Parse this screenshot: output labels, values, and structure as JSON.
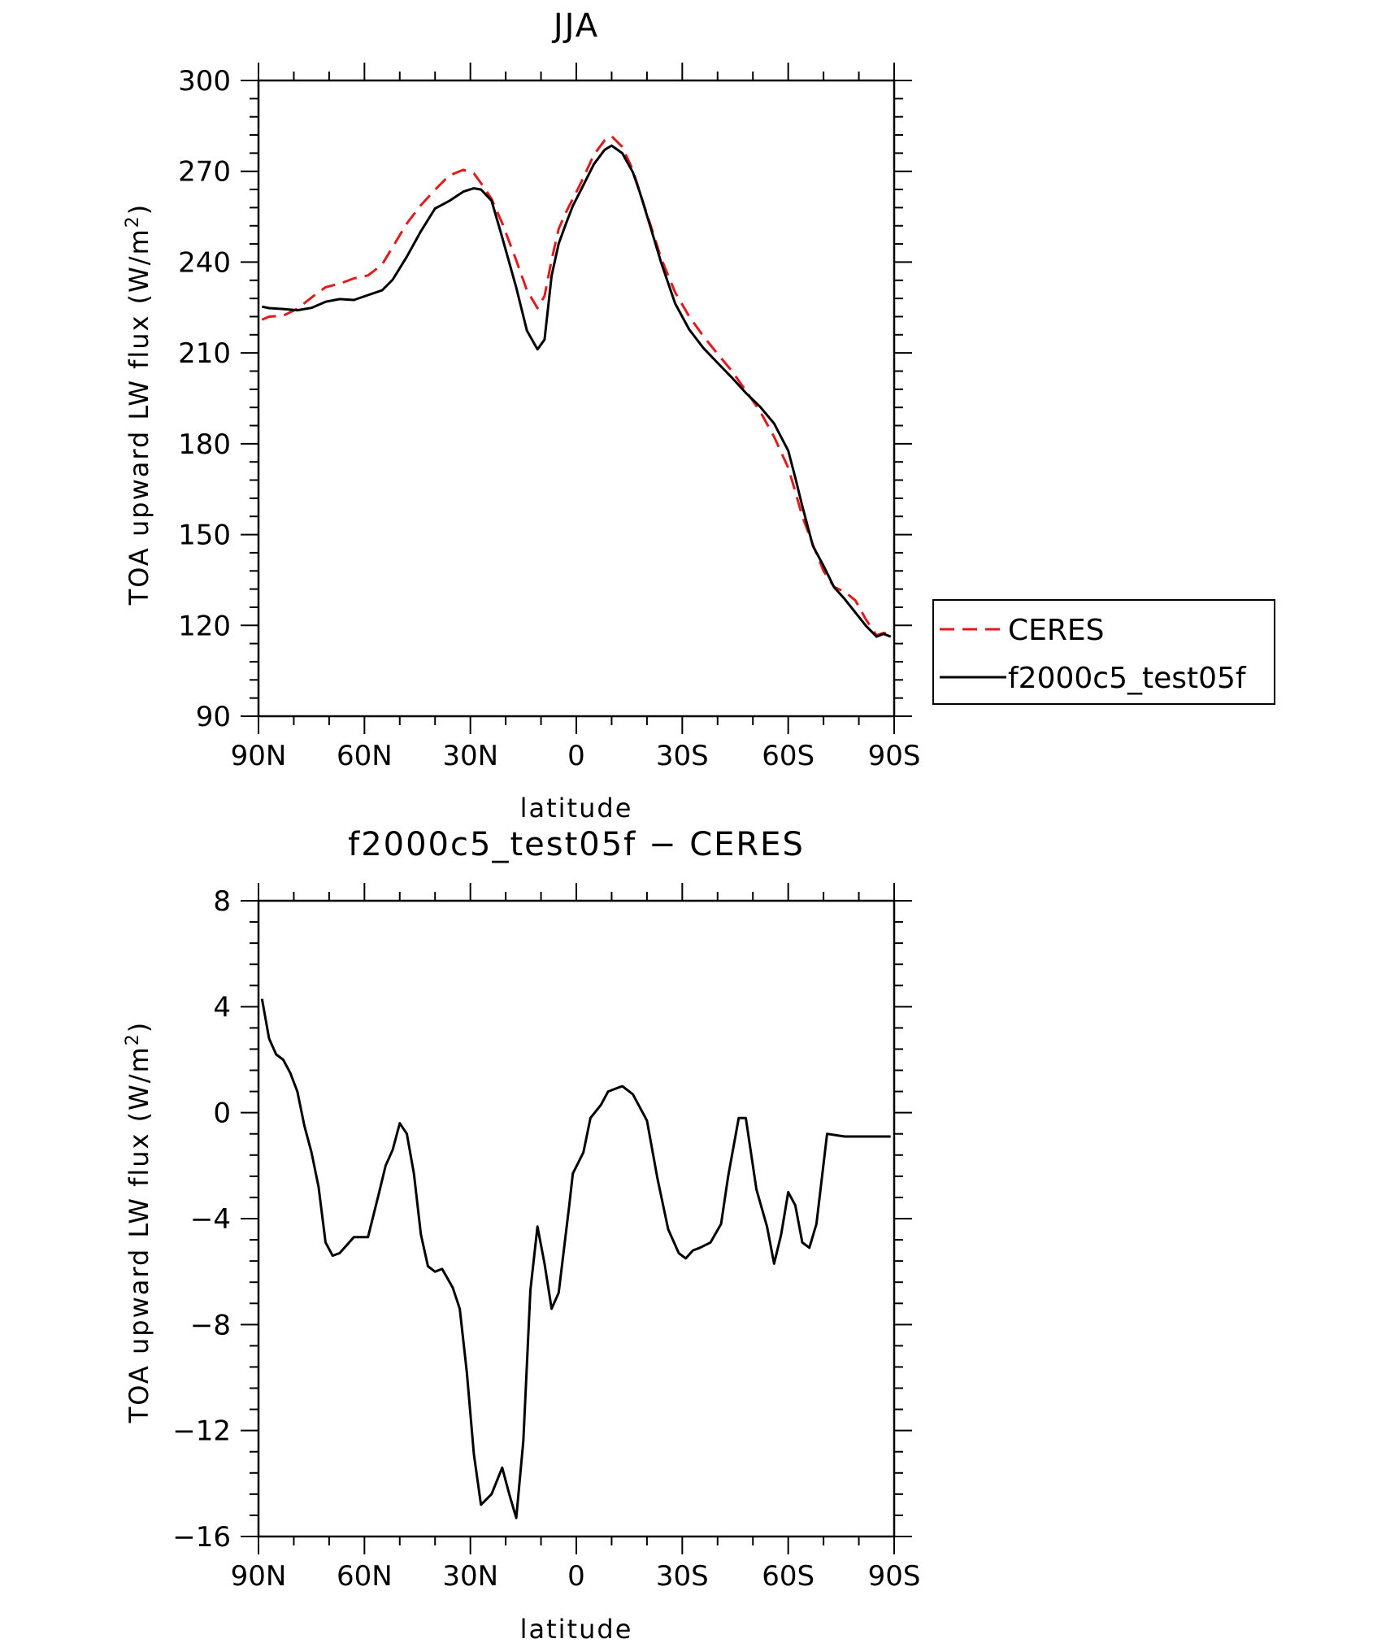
{
  "chart_data": [
    {
      "type": "line",
      "title": "JJA",
      "xlabel": "latitude",
      "ylabel": "TOA upward LW flux (W/m",
      "ylabel_sup": "2",
      "ylabel_close": ")",
      "xlim": [
        90,
        -90
      ],
      "ylim": [
        90,
        300
      ],
      "x_ticks": [
        90,
        60,
        30,
        0,
        -30,
        -60,
        -90
      ],
      "x_tick_labels": [
        "90N",
        "60N",
        "30N",
        "0",
        "30S",
        "60S",
        "90S"
      ],
      "y_ticks": [
        90,
        120,
        150,
        180,
        210,
        240,
        270,
        300
      ],
      "y_tick_labels": [
        "90",
        "120",
        "150",
        "180",
        "210",
        "240",
        "270",
        "300"
      ],
      "legend_position": "right",
      "x": [
        89,
        87,
        83,
        79,
        75,
        71,
        67,
        63,
        59,
        55,
        52,
        48,
        44,
        40,
        36,
        32,
        29,
        27,
        24,
        21,
        17,
        14,
        11,
        9,
        7,
        5,
        3,
        1,
        -1,
        -5,
        -8,
        -10,
        -13,
        -16,
        -18,
        -21,
        -24,
        -28,
        -32,
        -36,
        -40,
        -44,
        -48,
        -52,
        -56,
        -60,
        -62,
        -64,
        -67,
        -70,
        -73,
        -76,
        -79,
        -82,
        -85,
        -87,
        -89
      ],
      "series": [
        {
          "name": "CERES",
          "color": "#e31a1c",
          "dash": "dashed",
          "values": [
            221.0,
            222.0,
            222.3,
            224.6,
            228.3,
            231.7,
            232.9,
            234.6,
            235.6,
            239.2,
            245.0,
            252.8,
            258.8,
            263.9,
            268.6,
            270.5,
            269.3,
            266.1,
            260.9,
            252.9,
            240.6,
            230.7,
            224.8,
            228.8,
            240.7,
            251.0,
            256.3,
            260.9,
            265.4,
            275.5,
            280.2,
            281.6,
            278.1,
            270.5,
            263.0,
            252.3,
            241.3,
            230.0,
            222.0,
            215.5,
            209.7,
            204.1,
            197.5,
            190.8,
            182.3,
            172.1,
            164.2,
            156.0,
            146.6,
            138.0,
            132.7,
            131.1,
            128.3,
            122.0,
            116.7,
            117.5,
            117.0
          ]
        },
        {
          "name": "f2000c5_test05f",
          "color": "#000000",
          "dash": "solid",
          "values": [
            225.3,
            224.8,
            224.5,
            224.1,
            224.9,
            226.9,
            227.8,
            227.5,
            229.1,
            230.7,
            234.2,
            241.8,
            250.2,
            257.7,
            260.2,
            263.3,
            264.4,
            264.0,
            260.3,
            248.2,
            231.6,
            217.4,
            211.2,
            214.4,
            235.5,
            246.1,
            252.5,
            258.6,
            263.1,
            272.4,
            277.1,
            278.5,
            276.0,
            269.7,
            263.0,
            251.6,
            239.9,
            226.3,
            217.7,
            211.6,
            206.7,
            201.9,
            196.8,
            192.3,
            186.7,
            177.7,
            168.8,
            159.4,
            146.2,
            139.7,
            132.6,
            128.7,
            124.3,
            119.9,
            116.3,
            117.2,
            116.3
          ]
        }
      ]
    },
    {
      "type": "line",
      "title": "f2000c5_test05f − CERES",
      "xlabel": "latitude",
      "ylabel": "TOA upward LW flux (W/m",
      "ylabel_sup": "2",
      "ylabel_close": ")",
      "xlim": [
        90,
        -90
      ],
      "ylim": [
        -16,
        8
      ],
      "x_ticks": [
        90,
        60,
        30,
        0,
        -30,
        -60,
        -90
      ],
      "x_tick_labels": [
        "90N",
        "60N",
        "30N",
        "0",
        "30S",
        "60S",
        "90S"
      ],
      "y_ticks": [
        -16,
        -12,
        -8,
        -4,
        0,
        4,
        8
      ],
      "y_tick_labels": [
        "−16",
        "−12",
        "−8",
        "−4",
        "0",
        "4",
        "8"
      ],
      "x": [
        89,
        87,
        85,
        83,
        81,
        79,
        77,
        75,
        73,
        71,
        69,
        67,
        65,
        63,
        59,
        56,
        54,
        52,
        50,
        48,
        46,
        44,
        42,
        40,
        38,
        35,
        33,
        31,
        29,
        27,
        24,
        21,
        19,
        17,
        15,
        13,
        11,
        9,
        7,
        5,
        2,
        1,
        -2,
        -4,
        -7,
        -9,
        -13,
        -16,
        -20,
        -23,
        -26,
        -29,
        -31,
        -33,
        -35,
        -38,
        -41,
        -43,
        -46,
        -48,
        -51,
        -54,
        -56,
        -58,
        -60,
        -62,
        -64,
        -66,
        -68,
        -71,
        -76,
        -78,
        -80,
        -82,
        -85,
        -87,
        -89
      ],
      "series": [
        {
          "name": "f2000c5_test05f - CERES",
          "color": "#000000",
          "dash": "solid",
          "values": [
            4.3,
            2.8,
            2.2,
            2.0,
            1.5,
            0.8,
            -0.5,
            -1.5,
            -2.8,
            -4.9,
            -5.4,
            -5.3,
            -5.0,
            -4.7,
            -4.7,
            -3.1,
            -2.0,
            -1.4,
            -0.4,
            -0.8,
            -2.3,
            -4.6,
            -5.8,
            -6.0,
            -5.9,
            -6.6,
            -7.4,
            -9.8,
            -12.9,
            -14.8,
            -14.4,
            -13.4,
            -14.4,
            -15.3,
            -12.4,
            -6.7,
            -4.3,
            -5.7,
            -7.4,
            -6.8,
            -3.5,
            -2.3,
            -1.5,
            -0.2,
            0.3,
            0.8,
            1.0,
            0.7,
            -0.3,
            -2.5,
            -4.4,
            -5.3,
            -5.5,
            -5.2,
            -5.1,
            -4.9,
            -4.2,
            -2.4,
            -0.2,
            -0.2,
            -2.9,
            -4.3,
            -5.7,
            -4.6,
            -3.0,
            -3.5,
            -4.9,
            -5.1,
            -4.2,
            -0.8,
            -0.9,
            -0.9,
            -0.9,
            -0.9,
            -0.9,
            -0.9,
            -0.9
          ]
        }
      ]
    }
  ]
}
